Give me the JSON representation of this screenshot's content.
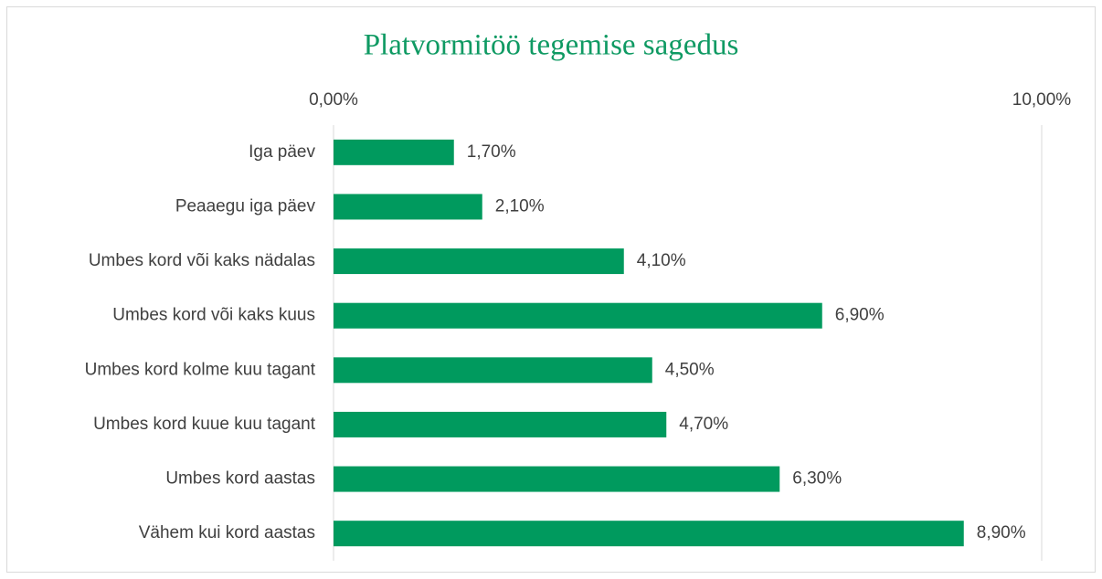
{
  "chart_data": {
    "type": "bar",
    "orientation": "horizontal",
    "title": "Platvormitöö tegemise sagedus",
    "categories": [
      "Iga päev",
      "Peaaegu iga päev",
      "Umbes kord või kaks nädalas",
      "Umbes kord või kaks kuus",
      "Umbes kord kolme kuu tagant",
      "Umbes kord kuue kuu tagant",
      "Umbes kord aastas",
      "Vähem kui kord aastas"
    ],
    "values": [
      1.7,
      2.1,
      4.1,
      6.9,
      4.5,
      4.7,
      6.3,
      8.9
    ],
    "value_labels": [
      "1,70%",
      "2,10%",
      "4,10%",
      "6,90%",
      "4,50%",
      "4,70%",
      "6,30%",
      "8,90%"
    ],
    "color": "#009a5e",
    "xlim": [
      0,
      10
    ],
    "xticks": [
      {
        "value": 0,
        "label": "0,00%"
      },
      {
        "value": 10,
        "label": "10,00%"
      }
    ],
    "grid": true
  }
}
